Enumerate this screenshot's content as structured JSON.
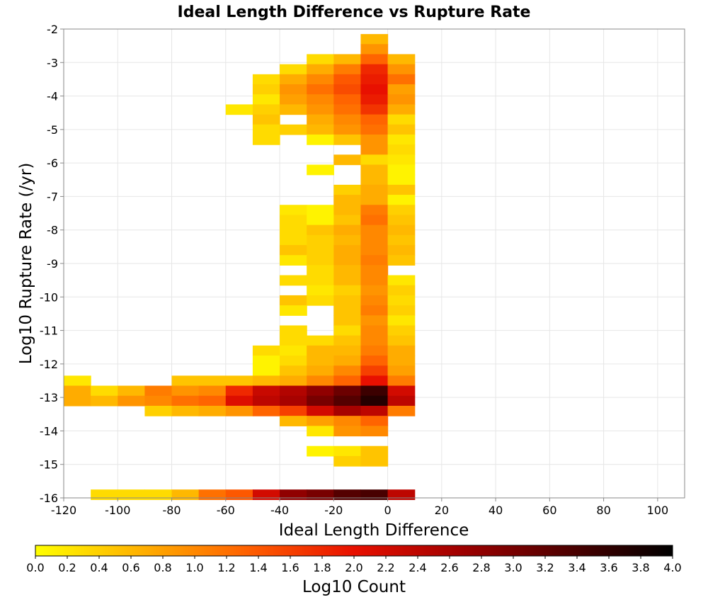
{
  "chart_data": {
    "type": "heatmap",
    "title": "Ideal Length Difference vs Rupture Rate",
    "xlabel": "Ideal Length Difference",
    "ylabel": "Log10 Rupture Rate (/yr)",
    "colorbar_label": "Log10 Count",
    "xlim": [
      -120,
      110
    ],
    "ylim": [
      -16,
      -2
    ],
    "x_ticks": [
      -120,
      -100,
      -80,
      -60,
      -40,
      -20,
      0,
      20,
      40,
      60,
      80,
      100
    ],
    "y_ticks": [
      -2,
      -3,
      -4,
      -5,
      -6,
      -7,
      -8,
      -9,
      -10,
      -11,
      -12,
      -13,
      -14,
      -15,
      -16
    ],
    "colorbar_range": [
      0.0,
      4.0
    ],
    "colorbar_ticks": [
      0.0,
      0.2,
      0.4,
      0.6,
      0.8,
      1.0,
      1.2,
      1.4,
      1.6,
      1.8,
      2.0,
      2.2,
      2.4,
      2.6,
      2.8,
      3.0,
      3.2,
      3.4,
      3.6,
      3.8,
      4.0
    ],
    "colormap": [
      "#ffff00",
      "#ffb000",
      "#ff6000",
      "#e81000",
      "#a00000",
      "#500000",
      "#000000"
    ],
    "bin_width_x": 10,
    "bin_height_y": 0.3,
    "cells": [
      [
        -5,
        -2.3,
        0.6
      ],
      [
        -5,
        -2.6,
        0.9
      ],
      [
        -25,
        -2.9,
        0.3
      ],
      [
        -15,
        -2.9,
        0.6
      ],
      [
        -5,
        -2.9,
        1.3
      ],
      [
        5,
        -2.9,
        0.6
      ],
      [
        -35,
        -3.2,
        0.3
      ],
      [
        -25,
        -3.2,
        0.7
      ],
      [
        -15,
        -3.2,
        1.1
      ],
      [
        -5,
        -3.2,
        1.8
      ],
      [
        5,
        -3.2,
        0.9
      ],
      [
        -45,
        -3.5,
        0.3
      ],
      [
        -35,
        -3.5,
        0.7
      ],
      [
        -25,
        -3.5,
        1.0
      ],
      [
        -15,
        -3.5,
        1.4
      ],
      [
        -5,
        -3.5,
        1.9
      ],
      [
        5,
        -3.5,
        1.2
      ],
      [
        -45,
        -3.8,
        0.4
      ],
      [
        -35,
        -3.8,
        0.9
      ],
      [
        -25,
        -3.8,
        1.2
      ],
      [
        -15,
        -3.8,
        1.5
      ],
      [
        -5,
        -3.8,
        2.0
      ],
      [
        5,
        -3.8,
        0.8
      ],
      [
        -45,
        -4.1,
        0.2
      ],
      [
        -35,
        -4.1,
        0.8
      ],
      [
        -25,
        -4.1,
        1.0
      ],
      [
        -15,
        -4.1,
        1.3
      ],
      [
        -5,
        -4.1,
        1.9
      ],
      [
        5,
        -4.1,
        0.9
      ],
      [
        -55,
        -4.4,
        0.2
      ],
      [
        -45,
        -4.4,
        0.4
      ],
      [
        -35,
        -4.4,
        0.6
      ],
      [
        -25,
        -4.4,
        0.9
      ],
      [
        -15,
        -4.4,
        1.2
      ],
      [
        -5,
        -4.4,
        1.7
      ],
      [
        5,
        -4.4,
        0.7
      ],
      [
        -45,
        -4.7,
        0.5
      ],
      [
        -25,
        -4.7,
        0.7
      ],
      [
        -15,
        -4.7,
        1.0
      ],
      [
        -5,
        -4.7,
        1.3
      ],
      [
        5,
        -4.7,
        0.3
      ],
      [
        -45,
        -5.0,
        0.3
      ],
      [
        -35,
        -5.0,
        0.4
      ],
      [
        -25,
        -5.0,
        0.6
      ],
      [
        -15,
        -5.0,
        0.9
      ],
      [
        -5,
        -5.0,
        1.2
      ],
      [
        5,
        -5.0,
        0.5
      ],
      [
        -45,
        -5.3,
        0.3
      ],
      [
        -25,
        -5.3,
        0.1
      ],
      [
        -15,
        -5.3,
        0.5
      ],
      [
        -5,
        -5.3,
        0.9
      ],
      [
        5,
        -5.3,
        0.2
      ],
      [
        -5,
        -5.6,
        0.9
      ],
      [
        5,
        -5.6,
        0.3
      ],
      [
        -15,
        -5.9,
        0.6
      ],
      [
        -5,
        -5.9,
        0.3
      ],
      [
        5,
        -5.9,
        0.2
      ],
      [
        -25,
        -6.2,
        0.1
      ],
      [
        -5,
        -6.2,
        0.6
      ],
      [
        5,
        -6.2,
        0.1
      ],
      [
        -5,
        -6.5,
        0.6
      ],
      [
        5,
        -6.5,
        0.1
      ],
      [
        -15,
        -6.8,
        0.4
      ],
      [
        -5,
        -6.8,
        0.7
      ],
      [
        5,
        -6.8,
        0.5
      ],
      [
        -15,
        -7.1,
        0.6
      ],
      [
        -5,
        -7.1,
        0.7
      ],
      [
        5,
        -7.1,
        0.1
      ],
      [
        -35,
        -7.4,
        0.2
      ],
      [
        -25,
        -7.4,
        0.1
      ],
      [
        -15,
        -7.4,
        0.6
      ],
      [
        -5,
        -7.4,
        1.1
      ],
      [
        5,
        -7.4,
        0.4
      ],
      [
        -35,
        -7.7,
        0.3
      ],
      [
        -25,
        -7.7,
        0.1
      ],
      [
        -15,
        -7.7,
        0.5
      ],
      [
        -5,
        -7.7,
        1.2
      ],
      [
        5,
        -7.7,
        0.5
      ],
      [
        -35,
        -8.0,
        0.3
      ],
      [
        -25,
        -8.0,
        0.5
      ],
      [
        -15,
        -8.0,
        0.7
      ],
      [
        -5,
        -8.0,
        1.0
      ],
      [
        5,
        -8.0,
        0.6
      ],
      [
        -35,
        -8.3,
        0.3
      ],
      [
        -25,
        -8.3,
        0.4
      ],
      [
        -15,
        -8.3,
        0.6
      ],
      [
        -5,
        -8.3,
        1.0
      ],
      [
        5,
        -8.3,
        0.5
      ],
      [
        -35,
        -8.6,
        0.5
      ],
      [
        -25,
        -8.6,
        0.4
      ],
      [
        -15,
        -8.6,
        0.7
      ],
      [
        -5,
        -8.6,
        1.0
      ],
      [
        5,
        -8.6,
        0.6
      ],
      [
        -35,
        -8.9,
        0.2
      ],
      [
        -25,
        -8.9,
        0.4
      ],
      [
        -15,
        -8.9,
        0.7
      ],
      [
        -5,
        -8.9,
        1.1
      ],
      [
        5,
        -8.9,
        0.5
      ],
      [
        -25,
        -9.2,
        0.3
      ],
      [
        -15,
        -9.2,
        0.6
      ],
      [
        -5,
        -9.2,
        1.0
      ],
      [
        -35,
        -9.5,
        0.3
      ],
      [
        -25,
        -9.5,
        0.3
      ],
      [
        -15,
        -9.5,
        0.6
      ],
      [
        -5,
        -9.5,
        1.0
      ],
      [
        5,
        -9.5,
        0.2
      ],
      [
        -25,
        -9.8,
        0.2
      ],
      [
        -15,
        -9.8,
        0.4
      ],
      [
        -5,
        -9.8,
        0.9
      ],
      [
        5,
        -9.8,
        0.4
      ],
      [
        -35,
        -10.1,
        0.5
      ],
      [
        -25,
        -10.1,
        0.3
      ],
      [
        -15,
        -10.1,
        0.5
      ],
      [
        -5,
        -10.1,
        1.0
      ],
      [
        5,
        -10.1,
        0.3
      ],
      [
        -35,
        -10.4,
        0.2
      ],
      [
        -15,
        -10.4,
        0.5
      ],
      [
        -5,
        -10.4,
        1.1
      ],
      [
        5,
        -10.4,
        0.4
      ],
      [
        -15,
        -10.7,
        0.5
      ],
      [
        -5,
        -10.7,
        0.9
      ],
      [
        5,
        -10.7,
        0.2
      ],
      [
        -35,
        -11.0,
        0.3
      ],
      [
        -15,
        -11.0,
        0.3
      ],
      [
        -5,
        -11.0,
        1.0
      ],
      [
        5,
        -11.0,
        0.4
      ],
      [
        -35,
        -11.3,
        0.3
      ],
      [
        -25,
        -11.3,
        0.3
      ],
      [
        -15,
        -11.3,
        0.5
      ],
      [
        -5,
        -11.3,
        1.0
      ],
      [
        5,
        -11.3,
        0.5
      ],
      [
        -45,
        -11.6,
        0.3
      ],
      [
        -35,
        -11.6,
        0.2
      ],
      [
        -25,
        -11.6,
        0.6
      ],
      [
        -15,
        -11.6,
        0.6
      ],
      [
        -5,
        -11.6,
        1.1
      ],
      [
        5,
        -11.6,
        0.7
      ],
      [
        -45,
        -11.9,
        0.1
      ],
      [
        -35,
        -11.9,
        0.3
      ],
      [
        -25,
        -11.9,
        0.6
      ],
      [
        -15,
        -11.9,
        0.7
      ],
      [
        -5,
        -11.9,
        1.3
      ],
      [
        5,
        -11.9,
        0.7
      ],
      [
        -45,
        -12.2,
        0.1
      ],
      [
        -35,
        -12.2,
        0.5
      ],
      [
        -25,
        -12.2,
        0.7
      ],
      [
        -15,
        -12.2,
        1.0
      ],
      [
        -5,
        -12.2,
        1.6
      ],
      [
        5,
        -12.2,
        0.8
      ],
      [
        -115,
        -12.5,
        0.2
      ],
      [
        -75,
        -12.5,
        0.5
      ],
      [
        -65,
        -12.5,
        0.5
      ],
      [
        -55,
        -12.5,
        0.5
      ],
      [
        -45,
        -12.5,
        0.6
      ],
      [
        -35,
        -12.5,
        0.7
      ],
      [
        -25,
        -12.5,
        1.0
      ],
      [
        -15,
        -12.5,
        1.3
      ],
      [
        -5,
        -12.5,
        2.0
      ],
      [
        5,
        -12.5,
        1.1
      ],
      [
        -115,
        -12.8,
        0.7
      ],
      [
        -105,
        -12.8,
        0.3
      ],
      [
        -95,
        -12.8,
        0.6
      ],
      [
        -85,
        -12.8,
        1.1
      ],
      [
        -75,
        -12.8,
        0.9
      ],
      [
        -65,
        -12.8,
        1.0
      ],
      [
        -55,
        -12.8,
        1.8
      ],
      [
        -45,
        -12.8,
        2.3
      ],
      [
        -35,
        -12.8,
        2.5
      ],
      [
        -25,
        -12.8,
        2.8
      ],
      [
        -15,
        -12.8,
        3.1
      ],
      [
        -5,
        -12.8,
        3.5
      ],
      [
        5,
        -12.8,
        2.2
      ],
      [
        -115,
        -13.1,
        0.7
      ],
      [
        -105,
        -13.1,
        0.6
      ],
      [
        -95,
        -13.1,
        0.9
      ],
      [
        -85,
        -13.1,
        1.0
      ],
      [
        -75,
        -13.1,
        1.2
      ],
      [
        -65,
        -13.1,
        1.3
      ],
      [
        -55,
        -13.1,
        2.1
      ],
      [
        -45,
        -13.1,
        2.4
      ],
      [
        -35,
        -13.1,
        2.6
      ],
      [
        -25,
        -13.1,
        3.0
      ],
      [
        -15,
        -13.1,
        3.3
      ],
      [
        -5,
        -13.1,
        3.7
      ],
      [
        5,
        -13.1,
        2.4
      ],
      [
        -85,
        -13.4,
        0.4
      ],
      [
        -75,
        -13.4,
        0.6
      ],
      [
        -65,
        -13.4,
        0.7
      ],
      [
        -55,
        -13.4,
        0.9
      ],
      [
        -45,
        -13.4,
        1.3
      ],
      [
        -35,
        -13.4,
        1.6
      ],
      [
        -25,
        -13.4,
        2.2
      ],
      [
        -15,
        -13.4,
        2.6
      ],
      [
        -5,
        -13.4,
        2.4
      ],
      [
        5,
        -13.4,
        1.1
      ],
      [
        -35,
        -13.7,
        0.6
      ],
      [
        -25,
        -13.7,
        0.8
      ],
      [
        -15,
        -13.7,
        1.0
      ],
      [
        -5,
        -13.7,
        1.3
      ],
      [
        -25,
        -14.0,
        0.2
      ],
      [
        -15,
        -14.0,
        0.9
      ],
      [
        -5,
        -14.0,
        1.0
      ],
      [
        -25,
        -14.6,
        0.1
      ],
      [
        -15,
        -14.6,
        0.2
      ],
      [
        -5,
        -14.6,
        0.5
      ],
      [
        -15,
        -14.9,
        0.4
      ],
      [
        -5,
        -14.9,
        0.5
      ],
      [
        -105,
        -15.9,
        0.3
      ],
      [
        -95,
        -15.9,
        0.3
      ],
      [
        -85,
        -15.9,
        0.3
      ],
      [
        -75,
        -15.9,
        0.6
      ],
      [
        -65,
        -15.9,
        1.2
      ],
      [
        -55,
        -15.9,
        1.4
      ],
      [
        -45,
        -15.9,
        2.2
      ],
      [
        -35,
        -15.9,
        2.8
      ],
      [
        -25,
        -15.9,
        3.0
      ],
      [
        -15,
        -15.9,
        3.3
      ],
      [
        -5,
        -15.9,
        3.4
      ],
      [
        5,
        -15.9,
        2.4
      ]
    ]
  }
}
